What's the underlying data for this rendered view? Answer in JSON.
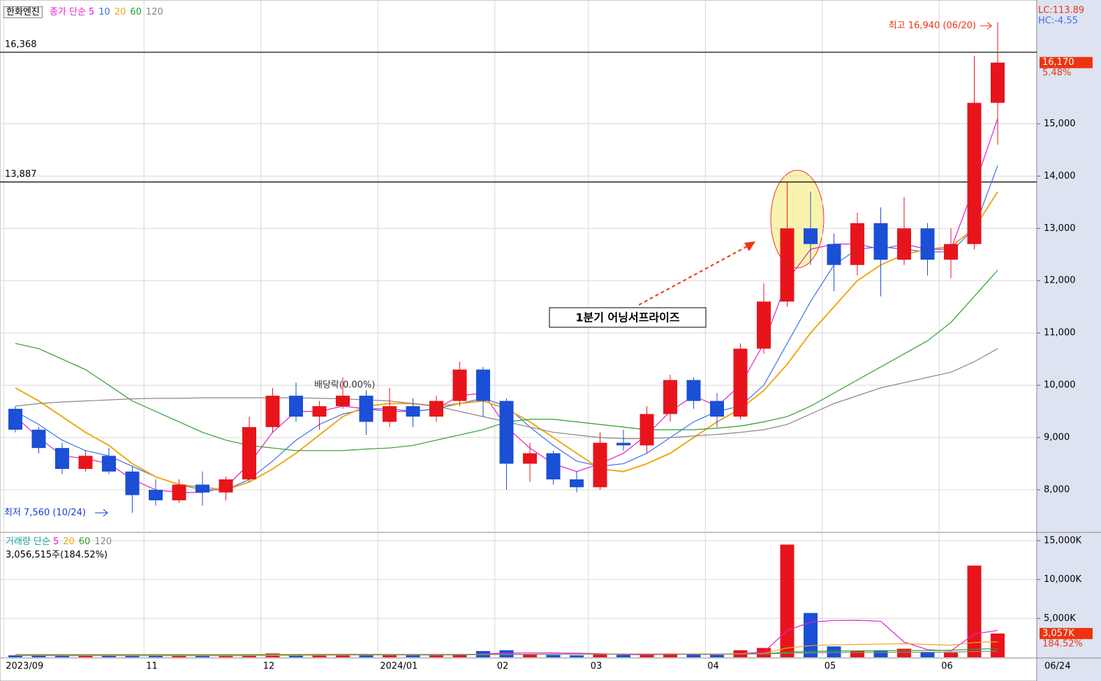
{
  "header": {
    "stock": "한화엔진"
  },
  "chart_data": [
    {
      "type": "candlestick",
      "legend_title": "종가 단순",
      "categories": [
        "2023/09",
        null,
        null,
        null,
        null,
        null,
        "11",
        null,
        null,
        null,
        null,
        "12",
        null,
        null,
        null,
        null,
        "2024/01",
        null,
        null,
        null,
        null,
        "02",
        null,
        null,
        null,
        "03",
        null,
        null,
        null,
        null,
        "04",
        null,
        null,
        null,
        null,
        "05",
        null,
        null,
        null,
        null,
        "06",
        null,
        null
      ],
      "x_end_label": "06/24",
      "open": [
        9550,
        9150,
        8800,
        8400,
        8650,
        8350,
        8000,
        7800,
        8100,
        7950,
        8200,
        9200,
        9800,
        9400,
        9600,
        9800,
        9300,
        9600,
        9400,
        9700,
        10300,
        9700,
        8500,
        8700,
        8200,
        8050,
        8900,
        8850,
        9450,
        10100,
        9700,
        9400,
        10700,
        11600,
        13000,
        12700,
        12300,
        13100,
        12400,
        13000,
        12400,
        12700,
        15400
      ],
      "high": [
        9600,
        9200,
        8900,
        8750,
        8800,
        8450,
        8200,
        8200,
        8350,
        8250,
        9400,
        9950,
        10050,
        9700,
        10150,
        9900,
        9950,
        9750,
        9800,
        10450,
        10350,
        9750,
        8900,
        8750,
        8350,
        9100,
        9150,
        9600,
        10200,
        10150,
        9850,
        10800,
        11950,
        13887,
        13700,
        12900,
        13300,
        13400,
        13600,
        13100,
        13000,
        16300,
        16940
      ],
      "low": [
        9100,
        8700,
        8300,
        8350,
        8300,
        7560,
        7700,
        7750,
        7700,
        7800,
        8150,
        9100,
        9300,
        9150,
        9550,
        9050,
        9200,
        9200,
        9300,
        9600,
        9400,
        8000,
        8150,
        8100,
        7950,
        8000,
        8750,
        8700,
        9300,
        9550,
        9200,
        9350,
        10600,
        11500,
        12300,
        11800,
        12100,
        11700,
        12300,
        12100,
        12050,
        12600,
        14600
      ],
      "close": [
        9150,
        8800,
        8400,
        8650,
        8350,
        7900,
        7800,
        8100,
        7950,
        8200,
        9200,
        9800,
        9400,
        9600,
        9800,
        9300,
        9600,
        9400,
        9700,
        10300,
        9700,
        8500,
        8700,
        8200,
        8050,
        8900,
        8850,
        9450,
        10100,
        9700,
        9400,
        10700,
        11600,
        13000,
        12700,
        12300,
        13100,
        12400,
        13000,
        12400,
        12700,
        15400,
        16170
      ],
      "up_color": "#e8141b",
      "down_color": "#1a4fd6",
      "series": [
        {
          "name": "5",
          "color": "#e020d0",
          "values": [
            9400,
            9000,
            8650,
            8600,
            8500,
            8200,
            8000,
            7950,
            7950,
            8050,
            8500,
            9100,
            9500,
            9500,
            9600,
            9550,
            9500,
            9500,
            9550,
            9800,
            9850,
            9200,
            8800,
            8500,
            8350,
            8500,
            8700,
            9050,
            9500,
            9800,
            9600,
            10000,
            10800,
            12000,
            12600,
            12700,
            12700,
            12600,
            12700,
            12600,
            12600,
            13800,
            15100
          ]
        },
        {
          "name": "10",
          "color": "#3b6ff0",
          "values": [
            9500,
            9250,
            8950,
            8750,
            8650,
            8450,
            8250,
            8100,
            8000,
            8000,
            8200,
            8550,
            8950,
            9250,
            9450,
            9550,
            9550,
            9500,
            9550,
            9650,
            9750,
            9600,
            9200,
            8850,
            8550,
            8450,
            8500,
            8700,
            9000,
            9300,
            9500,
            9600,
            10000,
            10800,
            11600,
            12300,
            12600,
            12650,
            12600,
            12550,
            12550,
            13000,
            14200
          ]
        },
        {
          "name": "20",
          "color": "#f0a818",
          "values": [
            9950,
            9700,
            9400,
            9100,
            8850,
            8500,
            8250,
            8100,
            8050,
            8000,
            8150,
            8400,
            8700,
            9050,
            9400,
            9600,
            9650,
            9650,
            9600,
            9650,
            9700,
            9550,
            9300,
            9000,
            8700,
            8400,
            8350,
            8500,
            8700,
            9000,
            9300,
            9550,
            9900,
            10400,
            11000,
            11500,
            12000,
            12300,
            12500,
            12600,
            12650,
            13000,
            13700
          ]
        },
        {
          "name": "60",
          "color": "#2aa02a",
          "values": [
            10800,
            10700,
            10500,
            10300,
            10000,
            9700,
            9500,
            9300,
            9100,
            8950,
            8850,
            8800,
            8750,
            8750,
            8750,
            8780,
            8800,
            8850,
            8950,
            9050,
            9150,
            9300,
            9350,
            9350,
            9300,
            9250,
            9200,
            9150,
            9150,
            9150,
            9180,
            9220,
            9300,
            9400,
            9600,
            9850,
            10100,
            10350,
            10600,
            10850,
            11200,
            11700,
            12200
          ]
        },
        {
          "name": "120",
          "color": "#888888",
          "values": [
            9600,
            9650,
            9680,
            9700,
            9720,
            9740,
            9750,
            9750,
            9760,
            9760,
            9760,
            9760,
            9760,
            9750,
            9740,
            9720,
            9700,
            9650,
            9600,
            9500,
            9400,
            9300,
            9200,
            9100,
            9050,
            9000,
            8980,
            8980,
            9000,
            9030,
            9060,
            9100,
            9150,
            9250,
            9450,
            9650,
            9800,
            9950,
            10050,
            10150,
            10250,
            10450,
            10700
          ]
        }
      ],
      "ylim": [
        7200,
        17300
      ],
      "yticks": [
        {
          "value": 8000,
          "label": "8,000"
        },
        {
          "value": 9000,
          "label": "9,000"
        },
        {
          "value": 10000,
          "label": "10,000"
        },
        {
          "value": 11000,
          "label": "11,000"
        },
        {
          "value": 12000,
          "label": "12,000"
        },
        {
          "value": 13000,
          "label": "13,000"
        },
        {
          "value": 14000,
          "label": "14,000"
        },
        {
          "value": 15000,
          "label": "15,000"
        }
      ],
      "hlines": [
        {
          "value": 16368,
          "label": "16,368"
        },
        {
          "value": 13887,
          "label": "13,887"
        }
      ],
      "grid": true,
      "annotations": {
        "high": "최고 16,940 (06/20)",
        "low": "최저 7,560 (10/24)",
        "event": "1분기 어닝서프라이즈",
        "dividend": "배당락(0.00%)",
        "lc": "LC:113.89",
        "hc": "HC:-4.55",
        "last_price": {
          "value": 16170,
          "label": "16,170"
        },
        "change": "5.48%"
      }
    },
    {
      "type": "volume",
      "legend_title": "거래량 단순",
      "info": "3,056,515주(184.52%)",
      "values": [
        250,
        200,
        220,
        180,
        200,
        250,
        180,
        200,
        220,
        180,
        300,
        500,
        400,
        300,
        350,
        280,
        300,
        280,
        250,
        400,
        800,
        900,
        400,
        300,
        250,
        500,
        300,
        350,
        500,
        350,
        300,
        900,
        1200,
        14500,
        5700,
        1400,
        800,
        900,
        1100,
        700,
        600,
        11800,
        3057
      ],
      "series": [
        {
          "name": "5",
          "color": "#e020d0",
          "values": [
            230,
            220,
            215,
            210,
            210,
            210,
            206,
            210,
            206,
            206,
            226,
            276,
            320,
            336,
            370,
            366,
            346,
            302,
            292,
            322,
            426,
            546,
            566,
            560,
            530,
            470,
            350,
            340,
            380,
            400,
            360,
            480,
            650,
            3450,
            4520,
            4740,
            4760,
            4640,
            1960,
            980,
            820,
            3000,
            3450
          ]
        },
        {
          "name": "20",
          "color": "#f0a818",
          "values": [
            260,
            255,
            250,
            240,
            230,
            225,
            222,
            220,
            218,
            215,
            220,
            235,
            250,
            265,
            280,
            290,
            300,
            305,
            310,
            320,
            350,
            380,
            400,
            410,
            420,
            430,
            440,
            440,
            440,
            440,
            430,
            460,
            500,
            1200,
            1500,
            1600,
            1650,
            1700,
            1750,
            1650,
            1550,
            1900,
            2000
          ]
        },
        {
          "name": "60",
          "color": "#2aa02a",
          "values": [
            300,
            300,
            300,
            300,
            300,
            300,
            300,
            300,
            300,
            300,
            300,
            310,
            320,
            330,
            330,
            330,
            330,
            330,
            330,
            340,
            360,
            380,
            390,
            400,
            400,
            400,
            400,
            400,
            400,
            400,
            400,
            420,
            450,
            650,
            750,
            800,
            820,
            840,
            870,
            880,
            900,
            1050,
            1100
          ]
        },
        {
          "name": "120",
          "color": "#888888",
          "values": [
            350,
            350,
            350,
            350,
            350,
            350,
            350,
            350,
            350,
            350,
            355,
            360,
            365,
            370,
            370,
            370,
            370,
            370,
            370,
            375,
            380,
            390,
            395,
            400,
            400,
            400,
            400,
            400,
            400,
            400,
            400,
            410,
            420,
            520,
            570,
            600,
            610,
            620,
            640,
            650,
            660,
            740,
            780
          ]
        }
      ],
      "ylim": [
        0,
        15800
      ],
      "yticks": [
        {
          "value": 5000,
          "label": "5,000K"
        },
        {
          "value": 10000,
          "label": "10,000K"
        },
        {
          "value": 15000,
          "label": "15,000K"
        }
      ],
      "last_value": {
        "value": 3057,
        "label": "3,057K"
      },
      "change": "184.52%"
    }
  ]
}
